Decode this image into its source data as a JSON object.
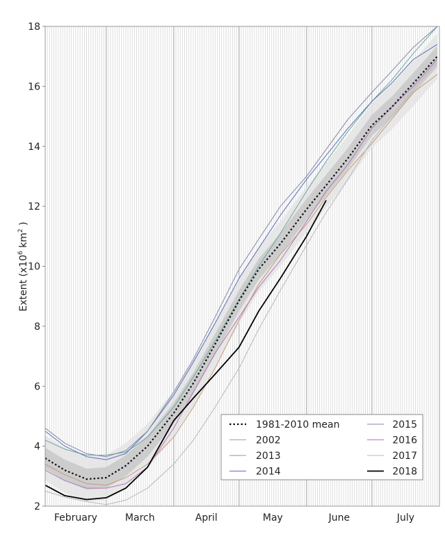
{
  "chart_data": {
    "type": "line",
    "title": "",
    "xlabel": "",
    "ylabel": "Extent (x10",
    "ylabel_sup1": "6",
    "ylabel_mid": " km",
    "ylabel_sup2": "2",
    "ylabel_end": " )",
    "ylim": [
      2,
      18
    ],
    "yticks": [
      "2",
      "4",
      "6",
      "8",
      "10",
      "12",
      "14",
      "16",
      "18"
    ],
    "xrange": [
      "02-01",
      "08-01"
    ],
    "month_labels": [
      "February",
      "March",
      "April",
      "May",
      "June",
      "July"
    ],
    "grid": "daily vertical lines, darker at month starts",
    "legend_placement": "bottom-right",
    "x": [
      "02-01",
      "02-10",
      "02-20",
      "03-01",
      "03-10",
      "03-20",
      "04-01",
      "04-10",
      "04-20",
      "05-01",
      "05-10",
      "05-20",
      "06-01",
      "06-10",
      "06-20",
      "07-01",
      "07-10",
      "07-20",
      "07-31"
    ],
    "bands": [
      {
        "name": "interdecile",
        "color": "#e4e4e4",
        "lower": [
          2.85,
          2.45,
          2.15,
          2.2,
          2.6,
          3.25,
          4.35,
          5.35,
          6.65,
          8.1,
          9.15,
          10.0,
          11.15,
          11.95,
          12.85,
          13.95,
          14.55,
          15.35,
          16.25
        ],
        "upper": [
          4.35,
          3.95,
          3.65,
          3.7,
          4.1,
          4.75,
          5.85,
          6.85,
          8.15,
          9.6,
          10.65,
          11.5,
          12.65,
          13.45,
          14.35,
          15.45,
          16.05,
          16.85,
          17.75
        ]
      },
      {
        "name": "interquartile",
        "color": "#c8c8c8",
        "lower": [
          3.25,
          2.85,
          2.55,
          2.6,
          3.0,
          3.65,
          4.75,
          5.75,
          7.05,
          8.5,
          9.55,
          10.4,
          11.55,
          12.35,
          13.25,
          14.35,
          14.95,
          15.75,
          16.65
        ],
        "upper": [
          3.95,
          3.55,
          3.25,
          3.3,
          3.7,
          4.35,
          5.45,
          6.45,
          7.75,
          9.2,
          10.25,
          11.1,
          12.25,
          13.05,
          13.95,
          15.05,
          15.65,
          16.45,
          17.35
        ]
      }
    ],
    "series": [
      {
        "name": "1981-2010 mean",
        "color": "#111111",
        "dash": true,
        "width": 2.2,
        "values": [
          3.6,
          3.2,
          2.9,
          2.95,
          3.35,
          4.0,
          5.1,
          6.1,
          7.4,
          8.85,
          9.9,
          10.75,
          11.9,
          12.7,
          13.6,
          14.7,
          15.3,
          16.1,
          17.0
        ]
      },
      {
        "name": "2002",
        "color": "#c49a78",
        "width": 1,
        "values": [
          3.4,
          3.05,
          2.75,
          2.7,
          2.95,
          3.4,
          4.3,
          5.3,
          6.6,
          8.2,
          9.4,
          10.4,
          11.4,
          12.3,
          13.2,
          14.1,
          14.9,
          15.8,
          16.4
        ]
      },
      {
        "name": "2013",
        "color": "#6aa8a0",
        "width": 1,
        "values": [
          4.2,
          3.9,
          3.7,
          3.7,
          3.8,
          4.3,
          5.3,
          6.3,
          7.5,
          8.9,
          10.0,
          11.1,
          12.5,
          13.5,
          14.5,
          15.5,
          16.2,
          17.1,
          18.0
        ]
      },
      {
        "name": "2014",
        "color": "#5a6fb8",
        "width": 1,
        "values": [
          4.5,
          4.0,
          3.65,
          3.55,
          3.75,
          4.5,
          5.7,
          6.8,
          8.1,
          9.6,
          10.6,
          11.7,
          12.9,
          13.7,
          14.6,
          15.5,
          16.1,
          16.9,
          17.4
        ]
      },
      {
        "name": "2015",
        "color": "#8088a8",
        "width": 1,
        "values": [
          4.6,
          4.1,
          3.75,
          3.65,
          3.85,
          4.5,
          5.8,
          6.9,
          8.3,
          9.9,
          10.9,
          12.0,
          13.0,
          13.9,
          14.9,
          15.8,
          16.5,
          17.3,
          18.0
        ]
      },
      {
        "name": "2016",
        "color": "#b07ab8",
        "width": 1,
        "values": [
          3.2,
          2.85,
          2.6,
          2.6,
          2.75,
          3.3,
          4.6,
          5.8,
          7.1,
          8.3,
          9.3,
          10.2,
          11.5,
          12.5,
          13.4,
          14.6,
          15.3,
          16.0,
          16.9
        ]
      },
      {
        "name": "2017",
        "color": "#b8b8b8",
        "width": 1,
        "values": [
          2.5,
          2.3,
          2.15,
          2.05,
          2.2,
          2.6,
          3.4,
          4.2,
          5.3,
          6.6,
          7.9,
          9.2,
          10.7,
          11.8,
          12.9,
          14.2,
          15.0,
          15.9,
          16.8
        ]
      },
      {
        "name": "2018",
        "color": "#000000",
        "width": 1.8,
        "values": [
          2.7,
          2.35,
          2.22,
          2.28,
          2.6,
          3.3,
          4.85,
          5.6,
          6.4,
          7.3,
          8.5,
          9.6,
          11.0,
          12.2,
          null,
          null,
          null,
          null,
          null
        ]
      }
    ]
  }
}
